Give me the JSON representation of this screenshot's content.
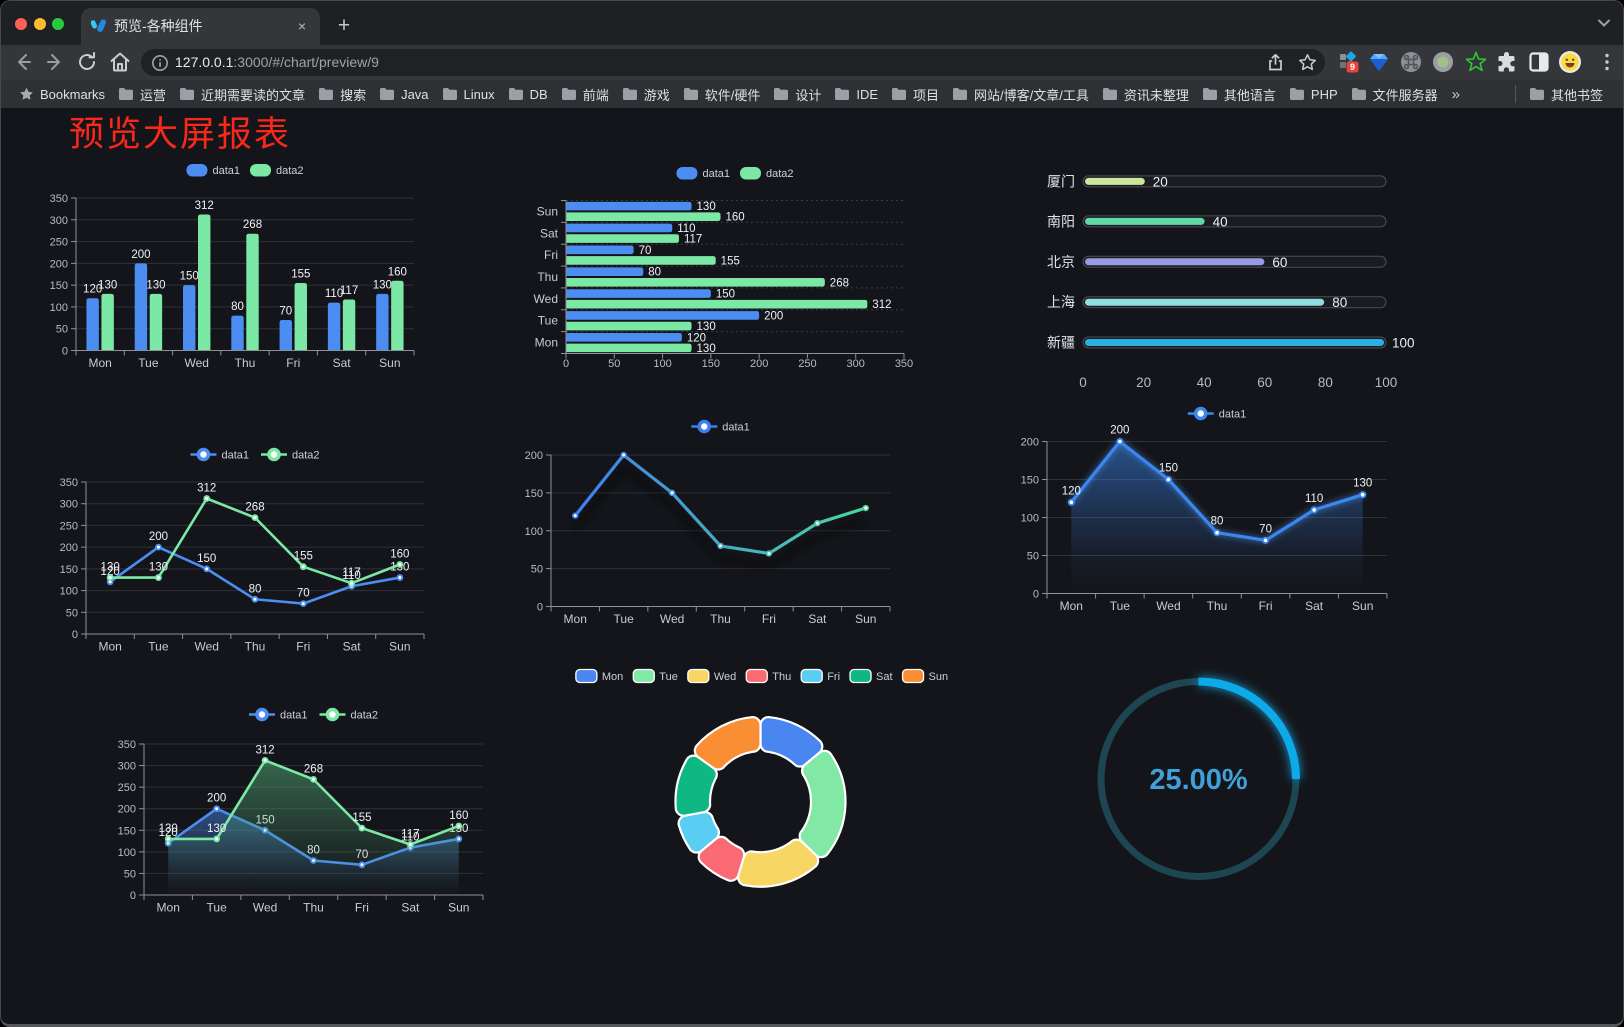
{
  "browser": {
    "tab": {
      "title": "预览-各种组件",
      "close_label": "×"
    },
    "new_tab_label": "+",
    "url": {
      "host": "127.0.0.1",
      "rest": ":3000/#/chart/preview/9"
    },
    "bookmarks": {
      "first_item": "Bookmarks",
      "folders": [
        "运营",
        "近期需要读的文章",
        "搜索",
        "Java",
        "Linux",
        "DB",
        "前端",
        "游戏",
        "软件/硬件",
        "设计",
        "IDE",
        "项目",
        "网站/博客/文章/工具",
        "资讯未整理",
        "其他语言",
        "PHP",
        "文件服务器"
      ],
      "overflow_chevron": "»",
      "other_bookmarks": "其他书签"
    },
    "extensions_badge": "9"
  },
  "page": {
    "title": "预览大屏报表",
    "title_color": "#f8291a",
    "background": "#14151a"
  },
  "chart_data": [
    {
      "id": "bar-vertical",
      "type": "bar",
      "categories": [
        "Mon",
        "Tue",
        "Wed",
        "Thu",
        "Fri",
        "Sat",
        "Sun"
      ],
      "series": [
        {
          "name": "data1",
          "color": "#4b8df1",
          "values": [
            120,
            200,
            150,
            80,
            70,
            110,
            130
          ]
        },
        {
          "name": "data2",
          "color": "#7ce8a5",
          "values": [
            130,
            130,
            312,
            268,
            155,
            117,
            160
          ]
        }
      ],
      "ylim": [
        0,
        350
      ],
      "ytick_step": 50,
      "legend_position": "top",
      "grid": true,
      "value_labels": true
    },
    {
      "id": "bar-horizontal",
      "type": "bar",
      "orientation": "horizontal",
      "categories": [
        "Mon",
        "Tue",
        "Wed",
        "Thu",
        "Fri",
        "Sat",
        "Sun"
      ],
      "series": [
        {
          "name": "data1",
          "color": "#4b8df1",
          "values": [
            120,
            200,
            150,
            80,
            70,
            110,
            130
          ]
        },
        {
          "name": "data2",
          "color": "#7ce8a5",
          "values": [
            130,
            130,
            312,
            268,
            155,
            117,
            160
          ]
        }
      ],
      "xlim": [
        0,
        350
      ],
      "xtick_step": 50,
      "legend_position": "top",
      "value_labels": true
    },
    {
      "id": "progress-bars",
      "type": "bar",
      "orientation": "horizontal",
      "categories": [
        "厦门",
        "南阳",
        "北京",
        "上海",
        "新疆"
      ],
      "values": [
        20,
        40,
        60,
        80,
        100
      ],
      "bar_colors": [
        "#cbe79b",
        "#5fd8a5",
        "#979ce2",
        "#8fdee1",
        "#29b1e3"
      ],
      "xlim": [
        0,
        100
      ],
      "xticks": [
        0,
        20,
        40,
        60,
        80,
        100
      ],
      "value_labels": true
    },
    {
      "id": "line-two-series",
      "type": "line",
      "categories": [
        "Mon",
        "Tue",
        "Wed",
        "Thu",
        "Fri",
        "Sat",
        "Sun"
      ],
      "series": [
        {
          "name": "data1",
          "color": "#4b8df1",
          "values": [
            120,
            200,
            150,
            80,
            70,
            110,
            130
          ]
        },
        {
          "name": "data2",
          "color": "#7ce8a5",
          "values": [
            130,
            130,
            312,
            268,
            155,
            117,
            160
          ]
        }
      ],
      "ylim": [
        0,
        350
      ],
      "ytick_step": 50,
      "legend_position": "top",
      "value_labels": true
    },
    {
      "id": "line-gradient",
      "type": "line",
      "categories": [
        "Mon",
        "Tue",
        "Wed",
        "Thu",
        "Fri",
        "Sat",
        "Sun"
      ],
      "series": [
        {
          "name": "data1",
          "color_start": "#3f7ef0",
          "color_end": "#4ad898",
          "values": [
            120,
            200,
            150,
            80,
            70,
            110,
            130
          ]
        }
      ],
      "ylim": [
        0,
        200
      ],
      "ytick_step": 50,
      "legend_position": "top",
      "value_labels": false
    },
    {
      "id": "area-line",
      "type": "area",
      "categories": [
        "Mon",
        "Tue",
        "Wed",
        "Thu",
        "Fri",
        "Sat",
        "Sun"
      ],
      "series": [
        {
          "name": "data1",
          "color": "#3a87f2",
          "values": [
            120,
            200,
            150,
            80,
            70,
            110,
            130
          ]
        }
      ],
      "ylim": [
        0,
        200
      ],
      "ytick_step": 50,
      "legend_position": "top",
      "value_labels": true
    },
    {
      "id": "area-two-series",
      "type": "area",
      "categories": [
        "Mon",
        "Tue",
        "Wed",
        "Thu",
        "Fri",
        "Sat",
        "Sun"
      ],
      "series": [
        {
          "name": "data1",
          "color": "#4b8df1",
          "values": [
            120,
            200,
            150,
            80,
            70,
            110,
            130
          ]
        },
        {
          "name": "data2",
          "color": "#7ce8a5",
          "values": [
            130,
            130,
            312,
            268,
            155,
            117,
            160
          ]
        }
      ],
      "ylim": [
        0,
        350
      ],
      "ytick_step": 50,
      "legend_position": "top",
      "value_labels": true
    },
    {
      "id": "donut",
      "type": "pie",
      "categories": [
        "Mon",
        "Tue",
        "Wed",
        "Thu",
        "Fri",
        "Sat",
        "Sun"
      ],
      "values": [
        120,
        200,
        150,
        80,
        70,
        110,
        130
      ],
      "colors": [
        "#4a86f0",
        "#82e8a6",
        "#f7d664",
        "#fa6a73",
        "#5acdf2",
        "#0fb882",
        "#f98e35"
      ],
      "legend_position": "top"
    },
    {
      "id": "progress-circle",
      "type": "gauge",
      "value": 25,
      "max": 100,
      "label": "25.00%",
      "arc_color": "#0baae9",
      "track_color": "#1d4652",
      "text_color": "#3fa0da"
    }
  ]
}
